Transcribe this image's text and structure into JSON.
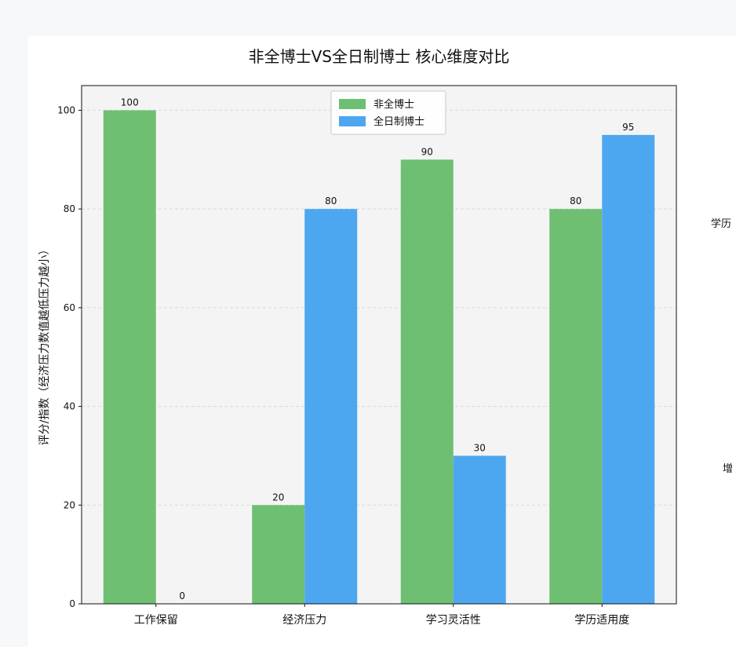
{
  "chart_data": {
    "type": "bar",
    "title": "非全博士VS全日制博士 核心维度对比",
    "ylabel": "评分/指数（经济压力数值越低压力越小）",
    "xlabel": "",
    "categories": [
      "工作保留",
      "经济压力",
      "学习灵活性",
      "学历适用度"
    ],
    "ylim": [
      0,
      105
    ],
    "yticks": [
      0,
      20,
      40,
      60,
      80,
      100
    ],
    "grid": "horizontal-dashed",
    "legend_position": "top-center",
    "series": [
      {
        "name": "非全博士",
        "values": [
          100,
          20,
          90,
          80
        ],
        "color": "#6fbf73"
      },
      {
        "name": "全日制博士",
        "values": [
          0,
          80,
          30,
          95
        ],
        "color": "#4da7f0"
      }
    ],
    "side_annotations": [
      "学历",
      "增"
    ]
  }
}
